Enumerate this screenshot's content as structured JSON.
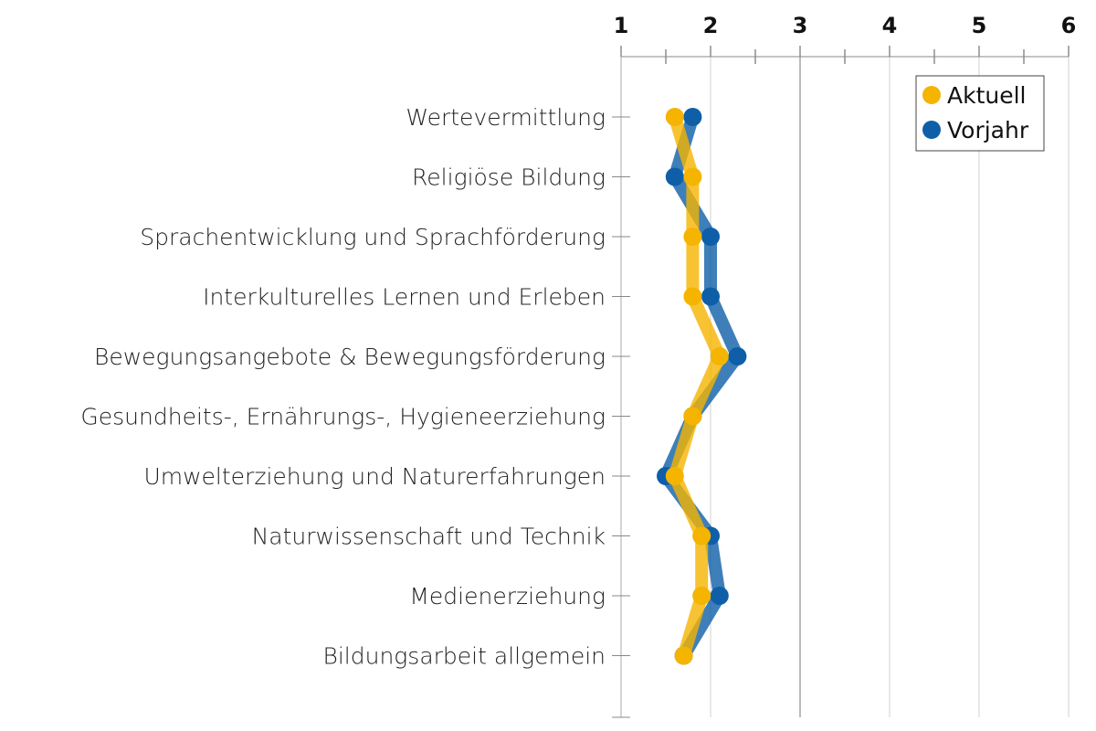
{
  "chart_data": {
    "type": "line",
    "orientation": "horizontal",
    "x_axis_position": "top",
    "xlim": [
      1,
      6
    ],
    "x_ticks": [
      "1",
      "2",
      "3",
      "4",
      "5",
      "6"
    ],
    "grid": true,
    "legend_placement": "top-right",
    "categories": [
      "Wertevermittlung",
      "Religiöse Bildung",
      "Sprachentwicklung und Sprachförderung",
      "Interkulturelles Lernen und Erleben",
      "Bewegungsangebote & Bewegungsförderung",
      "Gesundheits-, Ernährungs-, Hygieneerziehung",
      "Umwelterziehung und Naturerfahrungen",
      "Naturwissenschaft und Technik",
      "Medienerziehung",
      "Bildungsarbeit allgemein"
    ],
    "series": [
      {
        "name": "Vorjahr",
        "color": "#0e5fa8",
        "values": [
          1.8,
          1.6,
          2.0,
          2.0,
          2.3,
          1.8,
          1.5,
          2.0,
          2.1,
          1.7
        ]
      },
      {
        "name": "Aktuell",
        "color": "#f5b400",
        "values": [
          1.6,
          1.8,
          1.8,
          1.8,
          2.1,
          1.8,
          1.6,
          1.9,
          1.9,
          1.7
        ]
      }
    ],
    "legend": [
      "Aktuell",
      "Vorjahr"
    ]
  }
}
